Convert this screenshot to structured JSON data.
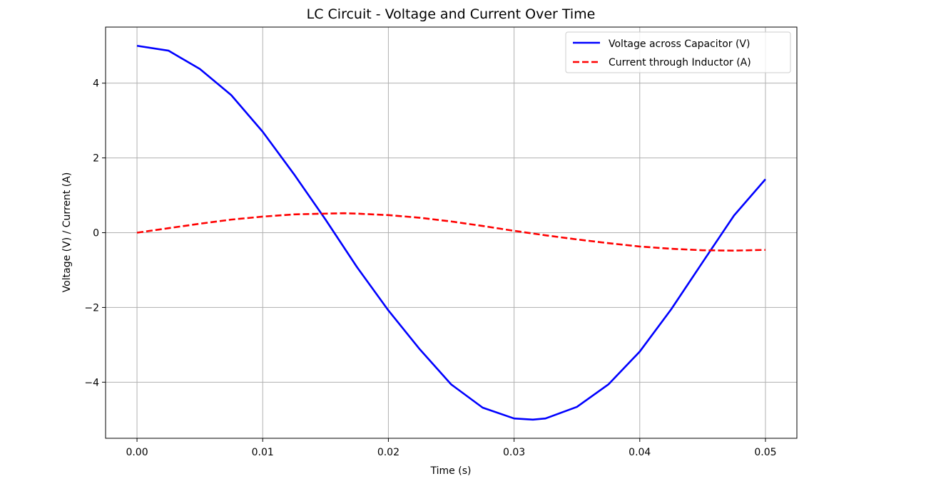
{
  "chart_data": {
    "type": "line",
    "title": "LC Circuit - Voltage and Current Over Time",
    "xlabel": "Time (s)",
    "ylabel": "Voltage (V) / Current (A)",
    "xlim": [
      -0.0025,
      0.0525
    ],
    "ylim": [
      -5.5,
      5.5
    ],
    "x_ticks": [
      0.0,
      0.01,
      0.02,
      0.03,
      0.04,
      0.05
    ],
    "x_tick_labels": [
      "0.00",
      "0.01",
      "0.02",
      "0.03",
      "0.04",
      "0.05"
    ],
    "y_ticks": [
      -4,
      -2,
      0,
      2,
      4
    ],
    "y_tick_labels": [
      "−4",
      "−2",
      "0",
      "2",
      "4"
    ],
    "grid": true,
    "legend_position": "upper right",
    "series": [
      {
        "name": "Voltage across Capacitor (V)",
        "color": "#0000ff",
        "style": "solid",
        "x": [
          0.0,
          0.0025,
          0.005,
          0.0075,
          0.01,
          0.0125,
          0.015,
          0.0175,
          0.02,
          0.0225,
          0.025,
          0.0275,
          0.03,
          0.0315,
          0.0325,
          0.035,
          0.0375,
          0.04,
          0.0425,
          0.045,
          0.0475,
          0.05
        ],
        "values": [
          5.0,
          4.87,
          4.38,
          3.68,
          2.7,
          1.56,
          0.35,
          -0.92,
          -2.08,
          -3.12,
          -4.06,
          -4.68,
          -4.97,
          -5.0,
          -4.97,
          -4.66,
          -4.06,
          -3.18,
          -2.05,
          -0.79,
          0.46,
          1.43
        ]
      },
      {
        "name": "Current through Inductor (A)",
        "color": "#ff0000",
        "style": "dashed",
        "x": [
          0.0,
          0.0025,
          0.005,
          0.0075,
          0.01,
          0.0125,
          0.015,
          0.0165,
          0.0175,
          0.02,
          0.0225,
          0.025,
          0.0275,
          0.03,
          0.0325,
          0.035,
          0.0375,
          0.04,
          0.0425,
          0.045,
          0.0475,
          0.05
        ],
        "values": [
          0.0,
          0.12,
          0.24,
          0.35,
          0.43,
          0.49,
          0.51,
          0.52,
          0.51,
          0.47,
          0.4,
          0.3,
          0.18,
          0.05,
          -0.07,
          -0.18,
          -0.28,
          -0.37,
          -0.43,
          -0.47,
          -0.48,
          -0.46
        ]
      }
    ]
  }
}
